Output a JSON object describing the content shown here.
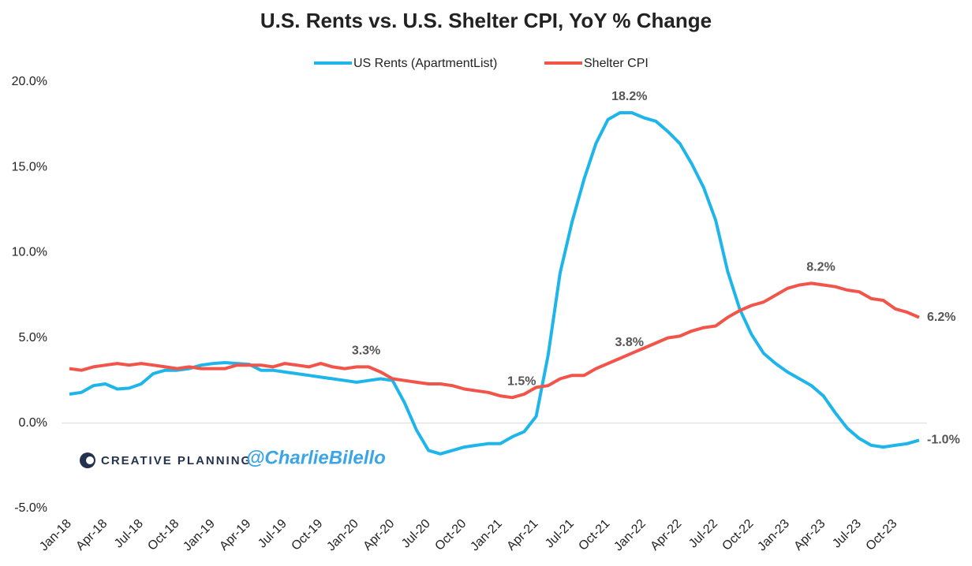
{
  "chart_data": {
    "type": "line",
    "title": "U.S. Rents vs. U.S. Shelter CPI, YoY % Change",
    "watermark": {
      "brand": "CREATIVE PLANNING",
      "handle": "@CharlieBilello"
    },
    "categories": [
      "Jan-18",
      null,
      null,
      "Apr-18",
      null,
      null,
      "Jul-18",
      null,
      null,
      "Oct-18",
      null,
      null,
      "Jan-19",
      null,
      null,
      "Apr-19",
      null,
      null,
      "Jul-19",
      null,
      null,
      "Oct-19",
      null,
      null,
      "Jan-20",
      null,
      null,
      "Apr-20",
      null,
      null,
      "Jul-20",
      null,
      null,
      "Oct-20",
      null,
      null,
      "Jan-21",
      null,
      null,
      "Apr-21",
      null,
      null,
      "Jul-21",
      null,
      null,
      "Oct-21",
      null,
      null,
      "Jan-22",
      null,
      null,
      "Apr-22",
      null,
      null,
      "Jul-22",
      null,
      null,
      "Oct-22",
      null,
      null,
      "Jan-23",
      null,
      null,
      "Apr-23",
      null,
      null,
      "Jul-23",
      null,
      null,
      "Oct-23",
      null,
      null
    ],
    "series": [
      {
        "name": "US Rents (ApartmentList)",
        "color": "#1eb6ea",
        "values": [
          1.7,
          1.8,
          2.2,
          2.3,
          2.0,
          2.05,
          2.3,
          2.9,
          3.1,
          3.1,
          3.2,
          3.4,
          3.5,
          3.55,
          3.5,
          3.45,
          3.1,
          3.1,
          3.0,
          2.9,
          2.8,
          2.7,
          2.6,
          2.5,
          2.4,
          2.5,
          2.6,
          2.5,
          1.2,
          -0.4,
          -1.6,
          -1.8,
          -1.6,
          -1.4,
          -1.3,
          -1.2,
          -1.2,
          -0.8,
          -0.5,
          0.4,
          4.0,
          8.8,
          11.8,
          14.3,
          16.4,
          17.8,
          18.2,
          18.2,
          17.9,
          17.7,
          17.1,
          16.4,
          15.2,
          13.8,
          11.9,
          8.9,
          6.7,
          5.2,
          4.1,
          3.5,
          3.0,
          2.6,
          2.2,
          1.6,
          0.6,
          -0.3,
          -0.9,
          -1.3,
          -1.4,
          -1.3,
          -1.2,
          -1.0
        ],
        "value_labels": [
          null,
          null,
          null,
          null,
          null,
          null,
          null,
          null,
          null,
          null,
          null,
          null,
          null,
          null,
          null,
          null,
          null,
          null,
          null,
          null,
          null,
          null,
          null,
          null,
          null,
          null,
          null,
          null,
          null,
          null,
          null,
          null,
          null,
          null,
          null,
          null,
          null,
          null,
          null,
          null,
          null,
          null,
          null,
          null,
          null,
          null,
          "18.2%",
          null,
          null,
          null,
          null,
          null,
          null,
          null,
          null,
          null,
          null,
          null,
          null,
          null,
          null,
          null,
          null,
          null,
          null,
          null,
          null,
          null,
          null,
          null,
          null,
          "-1.0%"
        ]
      },
      {
        "name": "Shelter CPI",
        "color": "#f2544a",
        "values": [
          3.2,
          3.1,
          3.3,
          3.4,
          3.5,
          3.4,
          3.5,
          3.4,
          3.3,
          3.2,
          3.3,
          3.2,
          3.2,
          3.2,
          3.4,
          3.4,
          3.4,
          3.3,
          3.5,
          3.4,
          3.3,
          3.5,
          3.3,
          3.2,
          3.3,
          3.3,
          3.0,
          2.6,
          2.5,
          2.4,
          2.3,
          2.3,
          2.2,
          2.0,
          1.9,
          1.8,
          1.6,
          1.5,
          1.7,
          2.1,
          2.2,
          2.6,
          2.8,
          2.8,
          3.2,
          3.5,
          3.8,
          4.1,
          4.4,
          4.7,
          5.0,
          5.1,
          5.4,
          5.6,
          5.7,
          6.2,
          6.6,
          6.9,
          7.1,
          7.5,
          7.9,
          8.1,
          8.2,
          8.1,
          8.0,
          7.8,
          7.7,
          7.3,
          7.2,
          6.7,
          6.5,
          6.2
        ],
        "value_labels": [
          null,
          null,
          null,
          null,
          null,
          null,
          null,
          null,
          null,
          null,
          null,
          null,
          null,
          null,
          null,
          null,
          null,
          null,
          null,
          null,
          null,
          null,
          null,
          null,
          "3.3%",
          null,
          null,
          null,
          null,
          null,
          null,
          null,
          null,
          null,
          null,
          null,
          null,
          "1.5%",
          null,
          null,
          null,
          null,
          null,
          null,
          null,
          null,
          "3.8%",
          null,
          null,
          null,
          null,
          null,
          null,
          null,
          null,
          null,
          null,
          null,
          null,
          null,
          null,
          null,
          "8.2%",
          null,
          null,
          null,
          null,
          null,
          null,
          null,
          null,
          "6.2%"
        ]
      }
    ],
    "ylim": [
      -5,
      20
    ],
    "yticks": [
      {
        "value": -5,
        "label": "-5.0%"
      },
      {
        "value": 0,
        "label": "0.0%"
      },
      {
        "value": 5,
        "label": "5.0%"
      },
      {
        "value": 10,
        "label": "10.0%"
      },
      {
        "value": 15,
        "label": "15.0%"
      },
      {
        "value": 20,
        "label": "20.0%"
      }
    ],
    "grid": false,
    "legend": "top"
  }
}
